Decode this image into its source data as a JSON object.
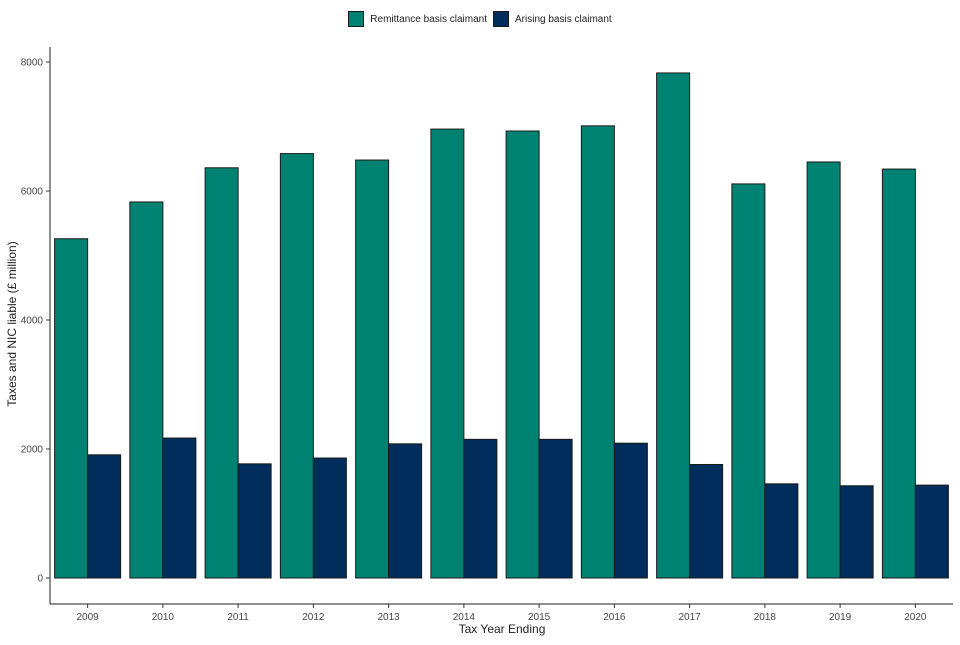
{
  "chart_data": {
    "type": "bar",
    "title": "",
    "xlabel": "Tax Year Ending",
    "ylabel": "Taxes and NIC liable (£ million)",
    "categories": [
      "2009",
      "2010",
      "2011",
      "2012",
      "2013",
      "2014",
      "2015",
      "2016",
      "2017",
      "2018",
      "2019",
      "2020"
    ],
    "series": [
      {
        "name": "Remittance basis claimant",
        "color": "#008272",
        "values": [
          5260,
          5830,
          6360,
          6580,
          6480,
          6960,
          6930,
          7010,
          7830,
          6110,
          6450,
          6340
        ]
      },
      {
        "name": "Arising basis claimant",
        "color": "#002d5c",
        "values": [
          1910,
          2170,
          1770,
          1860,
          2080,
          2150,
          2150,
          2090,
          1760,
          1460,
          1430,
          1440
        ]
      }
    ],
    "ylim": [
      0,
      8200
    ],
    "yticks": [
      0,
      2000,
      4000,
      6000,
      8000
    ],
    "grid": false,
    "legend_position": "top"
  }
}
